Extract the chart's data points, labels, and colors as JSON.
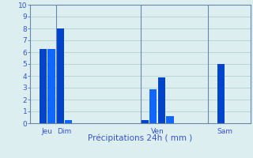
{
  "bars": [
    {
      "x": 1,
      "height": 6.3,
      "color": "#0044cc"
    },
    {
      "x": 2,
      "height": 6.3,
      "color": "#1166ff"
    },
    {
      "x": 3,
      "height": 8.0,
      "color": "#0044cc"
    },
    {
      "x": 4,
      "height": 0.3,
      "color": "#1166ff"
    },
    {
      "x": 13,
      "height": 0.3,
      "color": "#0044cc"
    },
    {
      "x": 14,
      "height": 2.9,
      "color": "#1166ff"
    },
    {
      "x": 15,
      "height": 3.9,
      "color": "#0044cc"
    },
    {
      "x": 16,
      "height": 0.6,
      "color": "#1166ff"
    },
    {
      "x": 22,
      "height": 5.0,
      "color": "#0044cc"
    }
  ],
  "bar_width": 0.9,
  "xlim": [
    -0.5,
    25.5
  ],
  "ylim": [
    0,
    10
  ],
  "yticks": [
    0,
    1,
    2,
    3,
    4,
    5,
    6,
    7,
    8,
    9,
    10
  ],
  "xlabel": "Précipitations 24h ( mm )",
  "xlabel_color": "#3355cc",
  "day_labels": [
    {
      "x": 1.5,
      "label": "Jeu"
    },
    {
      "x": 3.5,
      "label": "Dim"
    },
    {
      "x": 14.5,
      "label": "Ven"
    },
    {
      "x": 22.5,
      "label": "Sam"
    }
  ],
  "vlines": [
    2.5,
    12.5,
    20.5
  ],
  "background_color": "#ddeef0",
  "grid_color": "#aacccc",
  "tick_color": "#3355cc",
  "spine_color": "#6688aa"
}
